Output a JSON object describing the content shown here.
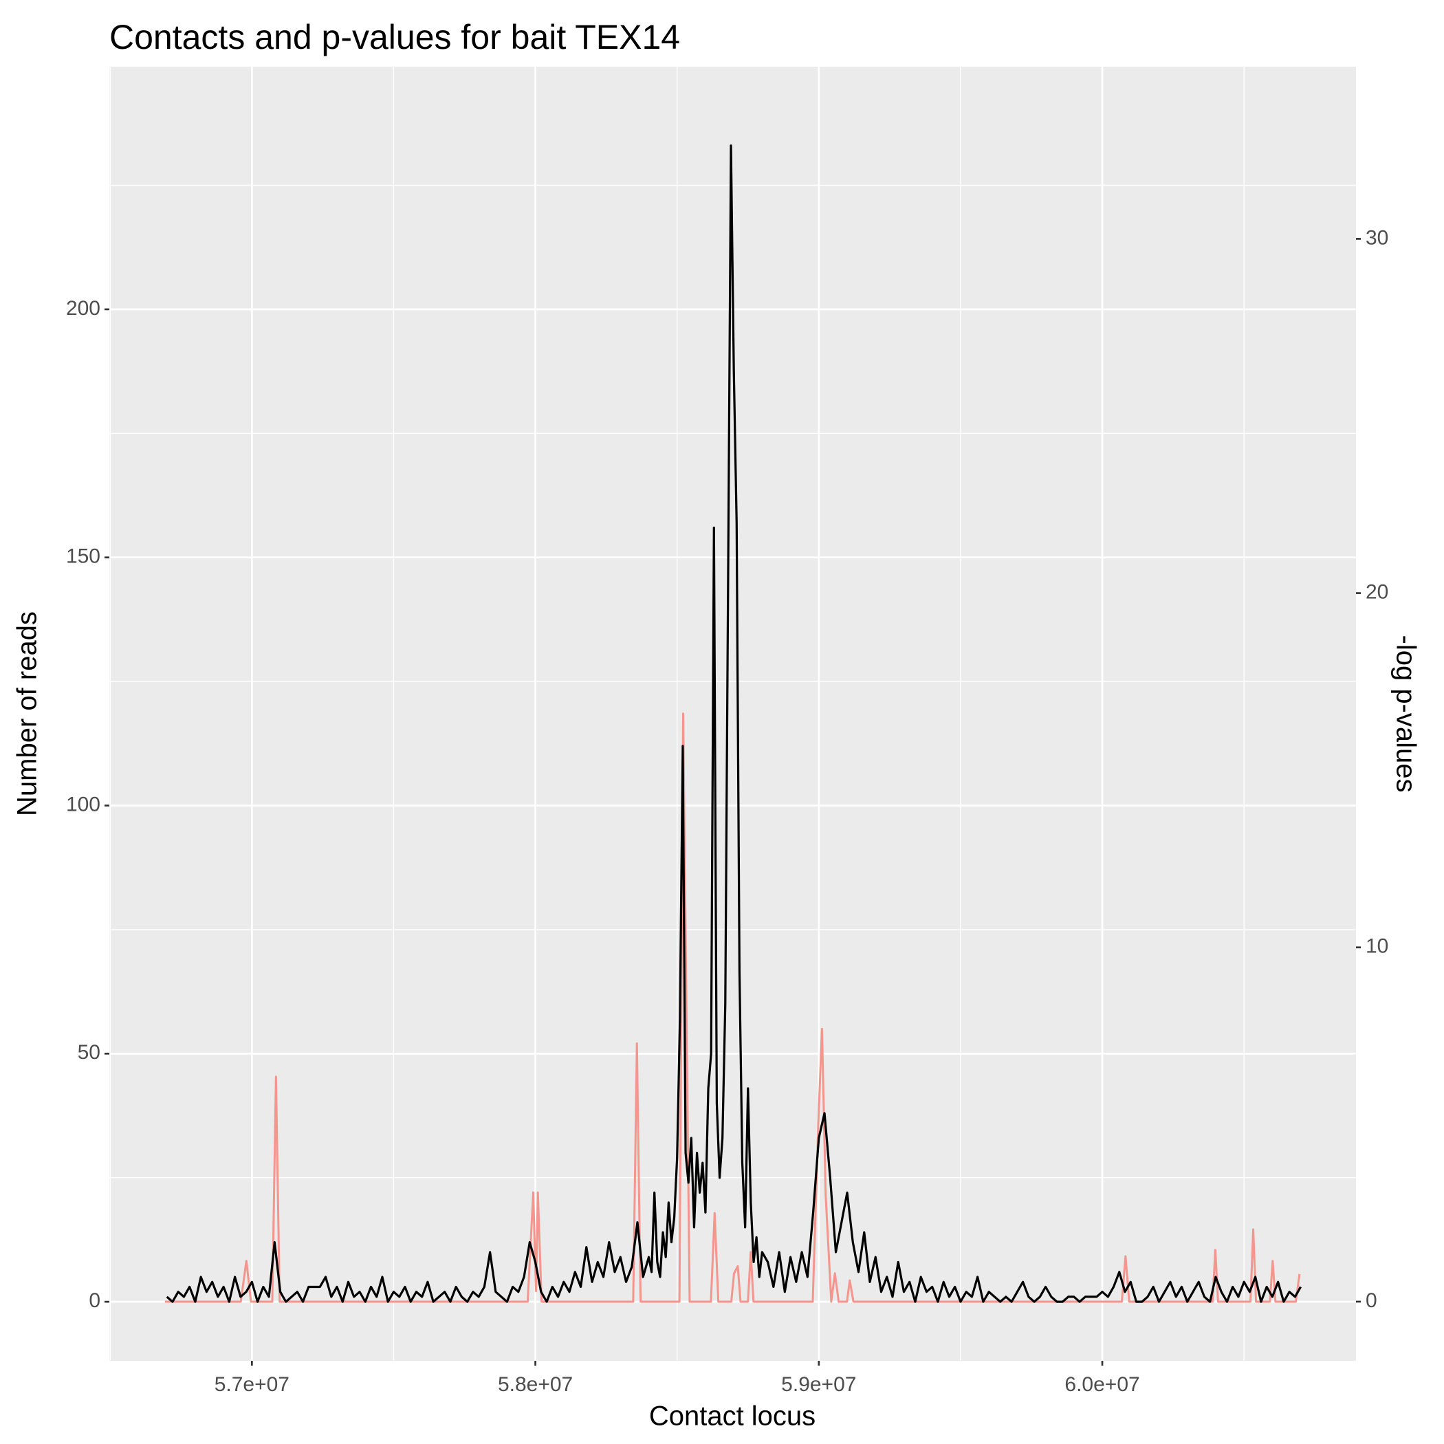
{
  "chart_data": {
    "type": "line",
    "title": "Contacts and p-values for bait TEX14",
    "x_label": "Contact locus",
    "y_label": "Number of reads",
    "y2_label": "-log p-values",
    "xlim": [
      56497000,
      60895000
    ],
    "ylim": [
      -11.9,
      248.9
    ],
    "y2lim": [
      -1.67,
      34.86
    ],
    "xticks": [
      {
        "value": 57000000,
        "label": "5.7e+07"
      },
      {
        "value": 58000000,
        "label": "5.8e+07"
      },
      {
        "value": 59000000,
        "label": "5.9e+07"
      },
      {
        "value": 60000000,
        "label": "6.0e+07"
      }
    ],
    "yticks": [
      0,
      50,
      100,
      150,
      200
    ],
    "y2ticks": [
      0,
      10,
      20,
      30
    ],
    "x_minor_grid": [
      56500000,
      57500000,
      58500000,
      59500000,
      60500000
    ],
    "y_minor_grid": [
      25,
      75,
      125,
      175,
      225
    ],
    "grid": true,
    "series": [
      {
        "color": "#f4958e",
        "axis": "y2",
        "x": [
          56693100,
          56960800,
          56980400,
          56996700,
          57071800,
          57084900,
          57097900,
          57972900,
          57992500,
          58002300,
          58008800,
          58021900,
          58345100,
          58358200,
          58371200,
          58508300,
          58521400,
          58544300,
          58619300,
          58632400,
          58645500,
          58691200,
          58701000,
          58714000,
          58723800,
          58749900,
          58759700,
          58769500,
          58978500,
          58998100,
          59011100,
          59024200,
          59043800,
          59056800,
          59069900,
          59099300,
          59109100,
          59122100,
          60068900,
          60082000,
          60095000,
          60388900,
          60398700,
          60408500,
          60522700,
          60532500,
          60542300,
          60591300,
          60601100,
          60610900,
          60682700,
          60695800
        ],
        "values": [
          0,
          0,
          1.15,
          0,
          0,
          6.35,
          0,
          0,
          3.08,
          0.3,
          3.08,
          0,
          0,
          7.29,
          0,
          0,
          16.6,
          0,
          0,
          2.5,
          0,
          0,
          0.8,
          1.0,
          0,
          0,
          1.4,
          0,
          0,
          5,
          7.7,
          3,
          0,
          0.8,
          0,
          0,
          0.6,
          0,
          0,
          1.28,
          0,
          0,
          1.46,
          0,
          0,
          2.04,
          0,
          0,
          1.15,
          0,
          0,
          0.78
        ]
      },
      {
        "color": "#000000",
        "axis": "y",
        "x": [
          56700000,
          56720000,
          56740000,
          56760000,
          56780000,
          56800000,
          56820000,
          56840000,
          56860000,
          56880000,
          56900000,
          56920000,
          56940000,
          56960000,
          56980000,
          57000000,
          57020000,
          57040000,
          57060000,
          57080000,
          57100000,
          57120000,
          57140000,
          57160000,
          57180000,
          57200000,
          57220000,
          57240000,
          57260000,
          57280000,
          57300000,
          57320000,
          57340000,
          57360000,
          57380000,
          57400000,
          57420000,
          57440000,
          57460000,
          57480000,
          57500000,
          57520000,
          57540000,
          57560000,
          57580000,
          57600000,
          57620000,
          57640000,
          57660000,
          57680000,
          57700000,
          57720000,
          57740000,
          57760000,
          57780000,
          57800000,
          57820000,
          57840000,
          57860000,
          57880000,
          57900000,
          57920000,
          57940000,
          57960000,
          57980000,
          58000000,
          58020000,
          58040000,
          58060000,
          58080000,
          58100000,
          58120000,
          58140000,
          58160000,
          58180000,
          58200000,
          58220000,
          58240000,
          58260000,
          58280000,
          58300000,
          58320000,
          58340000,
          58360000,
          58380000,
          58400000,
          58410000,
          58420000,
          58430000,
          58440000,
          58450000,
          58460000,
          58470000,
          58480000,
          58490000,
          58500000,
          58510000,
          58520000,
          58530000,
          58540000,
          58550000,
          58560000,
          58570000,
          58580000,
          58590000,
          58600000,
          58610000,
          58620000,
          58630000,
          58640000,
          58650000,
          58660000,
          58670000,
          58680000,
          58690000,
          58700000,
          58710000,
          58720000,
          58730000,
          58740000,
          58750000,
          58760000,
          58770000,
          58780000,
          58790000,
          58800000,
          58820000,
          58840000,
          58860000,
          58880000,
          58900000,
          58920000,
          58940000,
          58960000,
          58980000,
          59000000,
          59020000,
          59040000,
          59060000,
          59080000,
          59100000,
          59120000,
          59140000,
          59160000,
          59180000,
          59200000,
          59220000,
          59240000,
          59260000,
          59280000,
          59300000,
          59320000,
          59340000,
          59360000,
          59380000,
          59400000,
          59420000,
          59440000,
          59460000,
          59480000,
          59500000,
          59520000,
          59540000,
          59560000,
          59580000,
          59600000,
          59620000,
          59640000,
          59660000,
          59680000,
          59700000,
          59720000,
          59740000,
          59760000,
          59780000,
          59800000,
          59820000,
          59840000,
          59860000,
          59880000,
          59900000,
          59920000,
          59940000,
          59960000,
          59980000,
          60000000,
          60020000,
          60040000,
          60060000,
          60080000,
          60100000,
          60120000,
          60140000,
          60160000,
          60180000,
          60200000,
          60220000,
          60240000,
          60260000,
          60280000,
          60300000,
          60320000,
          60340000,
          60360000,
          60380000,
          60400000,
          60420000,
          60440000,
          60460000,
          60480000,
          60500000,
          60520000,
          60540000,
          60560000,
          60580000,
          60600000,
          60620000,
          60640000,
          60660000,
          60680000,
          60700000
        ],
        "values": [
          1,
          0,
          2,
          1,
          3,
          0,
          5,
          2,
          4,
          1,
          3,
          0,
          5,
          1,
          2,
          4,
          0,
          3,
          1,
          12,
          2,
          0,
          1,
          2,
          0,
          3,
          3,
          3,
          5,
          1,
          3,
          0,
          4,
          1,
          2,
          0,
          3,
          1,
          5,
          0,
          2,
          1,
          3,
          0,
          2,
          1,
          4,
          0,
          1,
          2,
          0,
          3,
          1,
          0,
          2,
          1,
          3,
          10,
          2,
          1,
          0,
          3,
          2,
          5,
          12,
          8,
          2,
          0,
          3,
          1,
          4,
          2,
          6,
          3,
          11,
          4,
          8,
          5,
          12,
          6,
          9,
          4,
          7,
          16,
          5,
          9,
          6,
          22,
          8,
          5,
          14,
          9,
          20,
          12,
          17,
          29,
          57,
          112,
          30,
          24,
          33,
          15,
          30,
          22,
          28,
          18,
          43,
          50,
          156,
          40,
          25,
          33,
          60,
          146,
          233,
          188,
          157,
          67,
          28,
          15,
          43,
          20,
          8,
          13,
          5,
          10,
          8,
          3,
          10,
          2,
          9,
          4,
          10,
          5,
          18,
          33,
          38,
          25,
          10,
          16,
          22,
          12,
          6,
          14,
          4,
          9,
          2,
          5,
          1,
          8,
          2,
          4,
          0,
          5,
          2,
          3,
          0,
          4,
          1,
          3,
          0,
          2,
          1,
          5,
          0,
          2,
          1,
          0,
          1,
          0,
          2,
          4,
          1,
          0,
          1,
          3,
          1,
          0,
          0,
          1,
          1,
          0,
          1,
          1,
          1,
          2,
          1,
          3,
          6,
          2,
          4,
          0,
          0,
          1,
          3,
          0,
          2,
          4,
          1,
          3,
          0,
          2,
          4,
          1,
          0,
          5,
          2,
          0,
          3,
          1,
          4,
          2,
          5,
          0,
          3,
          1,
          4,
          0,
          2,
          1,
          3
        ]
      }
    ]
  }
}
